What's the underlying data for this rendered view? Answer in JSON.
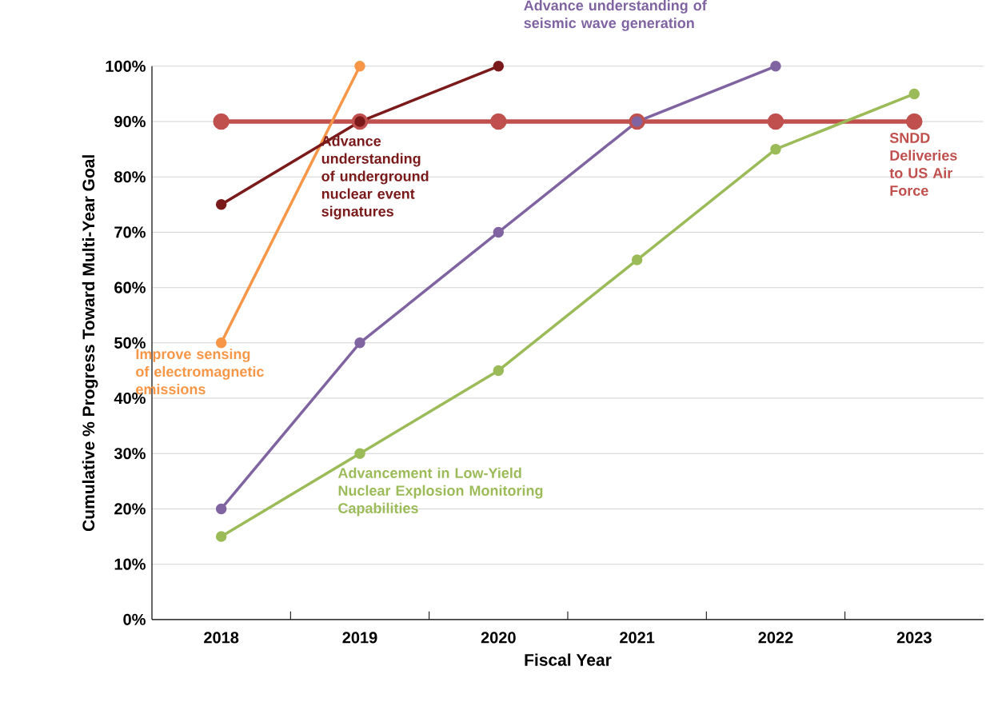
{
  "chart_data": {
    "type": "line",
    "xlabel": "Fiscal Year",
    "ylabel": "Cumulative % Progress Toward Multi-Year Goal",
    "categories": [
      "2018",
      "2019",
      "2020",
      "2021",
      "2022",
      "2023"
    ],
    "series": [
      {
        "name": "SNDD Deliveries to US Air Force",
        "color": "#c0504d",
        "values": [
          90,
          90,
          90,
          90,
          90,
          90
        ]
      },
      {
        "name": "Improve sensing of electromagnetic emissions",
        "color": "#f79646",
        "values": [
          50,
          100,
          null,
          null,
          null,
          null
        ]
      },
      {
        "name": "Advance understanding of underground nuclear event signatures",
        "color": "#7b1a1a",
        "values": [
          75,
          90,
          100,
          null,
          null,
          null
        ]
      },
      {
        "name": "Advance understanding of seismic wave generation",
        "color": "#8064a2",
        "values": [
          20,
          50,
          70,
          90,
          100,
          null
        ]
      },
      {
        "name": "Advancement in Low-Yield Nuclear Explosion Monitoring Capabilities",
        "color": "#9bbb59",
        "values": [
          15,
          30,
          45,
          65,
          85,
          95
        ]
      }
    ],
    "ylim": [
      0,
      100
    ],
    "yticks": [
      {
        "value": 0,
        "label": "0%"
      },
      {
        "value": 10,
        "label": "10%"
      },
      {
        "value": 20,
        "label": "20%"
      },
      {
        "value": 30,
        "label": "30%"
      },
      {
        "value": 40,
        "label": "40%"
      },
      {
        "value": 50,
        "label": "50%"
      },
      {
        "value": 60,
        "label": "60%"
      },
      {
        "value": 70,
        "label": "70%"
      },
      {
        "value": 80,
        "label": "80%"
      },
      {
        "value": 90,
        "label": "90%"
      },
      {
        "value": 100,
        "label": "100%"
      }
    ],
    "grid": "y",
    "marker": "circle"
  }
}
